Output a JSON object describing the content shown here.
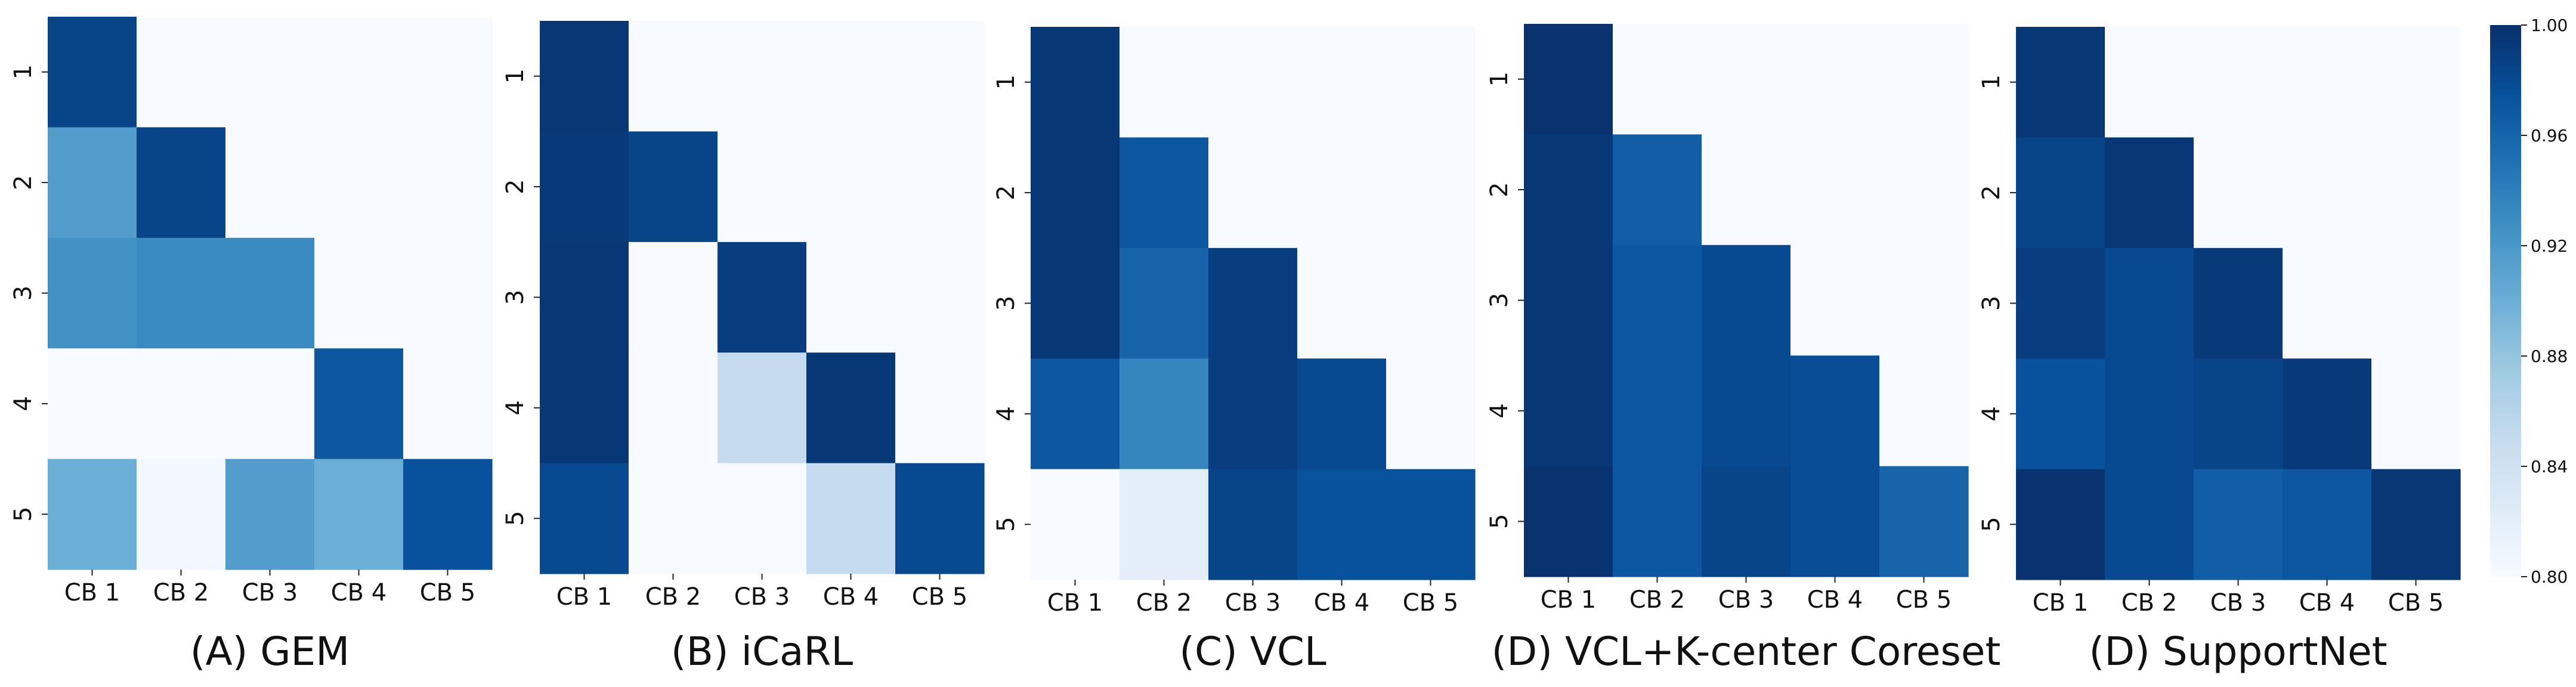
{
  "chart_data": {
    "type": "heatmap",
    "colormap": "Blues",
    "colorbar": {
      "range": [
        0.8,
        1.0
      ],
      "ticks": [
        "0.80",
        "0.84",
        "0.88",
        "0.92",
        "0.96",
        "1.00"
      ]
    },
    "panels": [
      {
        "caption": "(A) GEM",
        "x_labels": [
          "CB 1",
          "CB 2",
          "CB 3",
          "CB 4",
          "CB 5"
        ],
        "y_labels": [
          "1",
          "2",
          "3",
          "4",
          "5"
        ],
        "matrix": [
          [
            0.985,
            null,
            null,
            null,
            null
          ],
          [
            0.915,
            0.985,
            null,
            null,
            null
          ],
          [
            0.925,
            0.93,
            0.93,
            null,
            null
          ],
          [
            0.8,
            0.8,
            0.8,
            0.97,
            null
          ],
          [
            0.9,
            0.805,
            0.915,
            0.9,
            0.975
          ]
        ]
      },
      {
        "caption": "(B) iCaRL",
        "x_labels": [
          "CB 1",
          "CB 2",
          "CB 3",
          "CB 4",
          "CB 5"
        ],
        "y_labels": [
          "1",
          "2",
          "3",
          "4",
          "5"
        ],
        "matrix": [
          [
            0.995,
            null,
            null,
            null,
            null
          ],
          [
            0.993,
            0.985,
            null,
            null,
            null
          ],
          [
            0.995,
            0.8,
            0.99,
            null,
            null
          ],
          [
            0.995,
            0.8,
            0.85,
            0.995,
            null
          ],
          [
            0.98,
            0.8,
            0.8,
            0.85,
            0.98
          ]
        ]
      },
      {
        "caption": "(C) VCL",
        "x_labels": [
          "CB 1",
          "CB 2",
          "CB 3",
          "CB 4",
          "CB 5"
        ],
        "y_labels": [
          "1",
          "2",
          "3",
          "4",
          "5"
        ],
        "matrix": [
          [
            0.995,
            null,
            null,
            null,
            null
          ],
          [
            0.995,
            0.97,
            null,
            null,
            null
          ],
          [
            0.995,
            0.96,
            0.99,
            null,
            null
          ],
          [
            0.97,
            0.935,
            0.99,
            0.98,
            null
          ],
          [
            0.8,
            0.82,
            0.985,
            0.975,
            0.975
          ]
        ]
      },
      {
        "caption": "(D) VCL+K-center Coreset",
        "x_labels": [
          "CB 1",
          "CB 2",
          "CB 3",
          "CB 4",
          "CB 5"
        ],
        "y_labels": [
          "1",
          "2",
          "3",
          "4",
          "5"
        ],
        "matrix": [
          [
            0.998,
            null,
            null,
            null,
            null
          ],
          [
            0.995,
            0.965,
            null,
            null,
            null
          ],
          [
            0.995,
            0.97,
            0.98,
            null,
            null
          ],
          [
            0.995,
            0.97,
            0.98,
            0.978,
            null
          ],
          [
            0.998,
            0.97,
            0.985,
            0.978,
            0.96
          ]
        ]
      },
      {
        "caption": "(D) SupportNet",
        "x_labels": [
          "CB 1",
          "CB 2",
          "CB 3",
          "CB 4",
          "CB 5"
        ],
        "y_labels": [
          "1",
          "2",
          "3",
          "4",
          "5"
        ],
        "matrix": [
          [
            0.995,
            null,
            null,
            null,
            null
          ],
          [
            0.985,
            0.995,
            null,
            null,
            null
          ],
          [
            0.99,
            0.98,
            0.993,
            null,
            null
          ],
          [
            0.975,
            0.98,
            0.985,
            0.993,
            null
          ],
          [
            0.998,
            0.98,
            0.965,
            0.97,
            0.995
          ]
        ]
      }
    ]
  }
}
